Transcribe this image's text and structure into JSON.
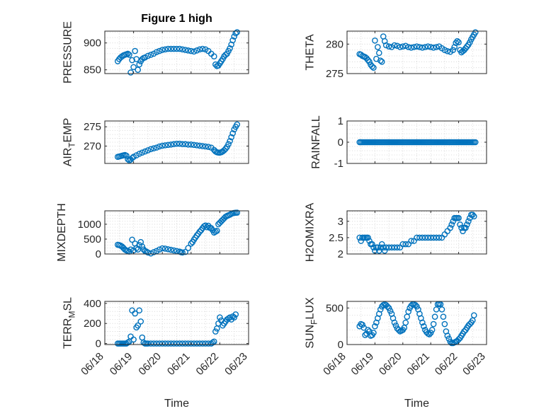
{
  "figure": {
    "title": "Figure 1 high",
    "marker_color": "#0072BD"
  },
  "chart_data": [
    {
      "id": "pressure",
      "type": "scatter",
      "title": "Figure 1 high",
      "ylabel": "PRESSURE",
      "xlabel": "",
      "ylim": [
        843,
        922
      ],
      "yticks": [
        850,
        900
      ],
      "ytick_labels": [
        "850",
        "900"
      ],
      "grid": true,
      "x": [
        18.45,
        18.5,
        18.55,
        18.6,
        18.65,
        18.7,
        18.75,
        18.8,
        18.85,
        18.9,
        18.95,
        19.0,
        19.05,
        19.1,
        19.15,
        19.2,
        19.25,
        19.3,
        19.35,
        19.4,
        19.5,
        19.6,
        19.7,
        19.8,
        19.9,
        20.0,
        20.1,
        20.2,
        20.3,
        20.4,
        20.5,
        20.6,
        20.7,
        20.8,
        20.9,
        21.0,
        21.1,
        21.2,
        21.3,
        21.4,
        21.5,
        21.6,
        21.7,
        21.8,
        21.85,
        21.9,
        21.95,
        22.0,
        22.05,
        22.1,
        22.15,
        22.2,
        22.25,
        22.3,
        22.35,
        22.4,
        22.45,
        22.5,
        22.55,
        22.6
      ],
      "y": [
        866,
        870,
        873,
        875,
        877,
        878,
        879,
        880,
        878,
        845,
        868,
        855,
        885,
        870,
        850,
        860,
        866,
        870,
        872,
        873,
        876,
        878,
        880,
        883,
        885,
        887,
        888,
        889,
        889,
        889,
        889,
        889,
        888,
        887,
        886,
        885,
        884,
        886,
        888,
        889,
        888,
        885,
        880,
        875,
        860,
        857,
        858,
        862,
        866,
        870,
        875,
        878,
        880,
        885,
        890,
        897,
        905,
        912,
        918,
        920
      ]
    },
    {
      "id": "theta",
      "type": "scatter",
      "title": "",
      "ylabel": "THETA",
      "xlabel": "",
      "ylim": [
        275,
        282.2
      ],
      "yticks": [
        275,
        280
      ],
      "ytick_labels": [
        "275",
        "280"
      ],
      "grid": true,
      "x": [
        18.45,
        18.5,
        18.55,
        18.6,
        18.65,
        18.7,
        18.75,
        18.8,
        18.85,
        18.9,
        18.95,
        19.0,
        19.05,
        19.1,
        19.15,
        19.2,
        19.25,
        19.3,
        19.35,
        19.4,
        19.5,
        19.6,
        19.7,
        19.8,
        19.9,
        20.0,
        20.1,
        20.2,
        20.3,
        20.4,
        20.5,
        20.6,
        20.7,
        20.8,
        20.9,
        21.0,
        21.1,
        21.2,
        21.3,
        21.4,
        21.5,
        21.6,
        21.7,
        21.8,
        21.85,
        21.9,
        21.95,
        22.0,
        22.05,
        22.1,
        22.15,
        22.2,
        22.25,
        22.3,
        22.35,
        22.4,
        22.45,
        22.5,
        22.55,
        22.6
      ],
      "y": [
        278.3,
        278.2,
        278.0,
        277.9,
        277.8,
        277.6,
        277.3,
        277.0,
        276.5,
        276.2,
        276.0,
        280.6,
        277.5,
        279.5,
        278.5,
        277.2,
        277.0,
        281.3,
        280.5,
        279.8,
        279.6,
        279.5,
        279.8,
        279.7,
        279.5,
        279.6,
        279.7,
        279.5,
        279.4,
        279.5,
        279.6,
        279.5,
        279.4,
        279.5,
        279.6,
        279.5,
        279.4,
        279.5,
        279.6,
        279.3,
        279.0,
        278.8,
        278.7,
        279.0,
        279.5,
        280.2,
        280.5,
        280.3,
        279.0,
        278.6,
        278.8,
        279.0,
        279.3,
        279.6,
        279.9,
        280.3,
        280.8,
        281.2,
        281.6,
        282.0
      ]
    },
    {
      "id": "air-temp",
      "type": "scatter",
      "title": "",
      "ylabel_main": "AIR",
      "ylabel_sub": "T",
      "ylabel_rest": "EMP",
      "xlabel": "",
      "ylim": [
        265.5,
        276.5
      ],
      "yticks": [
        270,
        275
      ],
      "ytick_labels": [
        "270",
        "275"
      ],
      "grid": true,
      "x": [
        18.45,
        18.5,
        18.55,
        18.6,
        18.65,
        18.7,
        18.75,
        18.8,
        18.85,
        18.9,
        18.95,
        19.0,
        19.1,
        19.2,
        19.3,
        19.4,
        19.5,
        19.6,
        19.7,
        19.8,
        19.9,
        20.0,
        20.1,
        20.2,
        20.3,
        20.4,
        20.5,
        20.6,
        20.7,
        20.8,
        20.9,
        21.0,
        21.1,
        21.2,
        21.3,
        21.4,
        21.5,
        21.6,
        21.7,
        21.8,
        21.85,
        21.9,
        21.95,
        22.0,
        22.05,
        22.1,
        22.15,
        22.2,
        22.25,
        22.3,
        22.35,
        22.4,
        22.45,
        22.5,
        22.55,
        22.6
      ],
      "y": [
        267.2,
        267.3,
        267.4,
        267.5,
        267.6,
        267.7,
        267.5,
        266.6,
        266.3,
        266.5,
        266.9,
        267.2,
        267.6,
        268.0,
        268.3,
        268.6,
        268.9,
        269.2,
        269.4,
        269.6,
        269.9,
        270.1,
        270.2,
        270.3,
        270.4,
        270.5,
        270.6,
        270.6,
        270.5,
        270.5,
        270.4,
        270.4,
        270.3,
        270.2,
        270.1,
        270.0,
        269.9,
        269.8,
        269.6,
        269.0,
        268.6,
        268.4,
        268.3,
        268.3,
        268.4,
        268.6,
        268.9,
        269.3,
        269.8,
        270.5,
        271.3,
        272.3,
        273.3,
        274.3,
        275.0,
        275.6
      ]
    },
    {
      "id": "rainfall",
      "type": "scatter",
      "title": "",
      "ylabel": "RAINFALL",
      "xlabel": "",
      "ylim": [
        -1,
        1
      ],
      "yticks": [
        -1,
        0,
        1
      ],
      "ytick_labels": [
        "-1",
        "0",
        "1"
      ],
      "grid": true,
      "x_start": 18.45,
      "x_end": 22.6,
      "x_step": 0.05,
      "constant_y": 0
    },
    {
      "id": "mixdepth",
      "type": "scatter",
      "title": "",
      "ylabel": "MIXDEPTH",
      "xlabel": "",
      "ylim": [
        0,
        1450
      ],
      "yticks": [
        0,
        500,
        1000
      ],
      "ytick_labels": [
        "0",
        "500",
        "1000"
      ],
      "grid": true,
      "x": [
        18.45,
        18.5,
        18.55,
        18.6,
        18.65,
        18.7,
        18.75,
        18.8,
        18.85,
        18.9,
        18.95,
        19.0,
        19.05,
        19.1,
        19.15,
        19.2,
        19.25,
        19.3,
        19.35,
        19.4,
        19.45,
        19.5,
        19.6,
        19.7,
        19.8,
        19.9,
        20.0,
        20.1,
        20.2,
        20.3,
        20.4,
        20.5,
        20.6,
        20.65,
        20.7,
        20.8,
        20.9,
        21.0,
        21.05,
        21.1,
        21.15,
        21.2,
        21.25,
        21.3,
        21.35,
        21.4,
        21.45,
        21.5,
        21.55,
        21.6,
        21.65,
        21.7,
        21.75,
        21.8,
        21.85,
        21.9,
        21.95,
        22.0,
        22.05,
        22.1,
        22.15,
        22.2,
        22.25,
        22.3,
        22.35,
        22.4,
        22.45,
        22.5,
        22.55,
        22.6
      ],
      "y": [
        310,
        300,
        280,
        250,
        200,
        150,
        120,
        100,
        80,
        150,
        480,
        120,
        350,
        200,
        150,
        300,
        400,
        250,
        150,
        100,
        80,
        50,
        20,
        60,
        100,
        150,
        190,
        180,
        160,
        140,
        120,
        100,
        80,
        60,
        50,
        70,
        200,
        350,
        400,
        480,
        550,
        620,
        680,
        750,
        800,
        870,
        930,
        960,
        900,
        950,
        880,
        870,
        800,
        720,
        750,
        780,
        1000,
        1050,
        1100,
        1150,
        1200,
        1250,
        1280,
        1300,
        1320,
        1350,
        1370,
        1380,
        1385,
        1390
      ]
    },
    {
      "id": "h2omixra",
      "type": "scatter",
      "title": "",
      "ylabel": "H2OMIXRA",
      "xlabel": "",
      "ylim": [
        2,
        3.32
      ],
      "yticks": [
        2,
        2.5,
        3
      ],
      "ytick_labels": [
        "2",
        "2.5",
        "3"
      ],
      "grid": true,
      "x": [
        18.45,
        18.5,
        18.55,
        18.6,
        18.65,
        18.7,
        18.75,
        18.8,
        18.85,
        18.9,
        18.95,
        19.0,
        19.05,
        19.1,
        19.15,
        19.2,
        19.25,
        19.3,
        19.35,
        19.4,
        19.5,
        19.6,
        19.7,
        19.8,
        19.9,
        20.0,
        20.1,
        20.2,
        20.3,
        20.4,
        20.5,
        20.6,
        20.7,
        20.8,
        20.9,
        21.0,
        21.1,
        21.2,
        21.3,
        21.4,
        21.5,
        21.6,
        21.7,
        21.75,
        21.8,
        21.85,
        21.9,
        21.95,
        22.0,
        22.05,
        22.1,
        22.15,
        22.2,
        22.25,
        22.3,
        22.35,
        22.4,
        22.45,
        22.5,
        22.55
      ],
      "y": [
        2.5,
        2.4,
        2.5,
        2.5,
        2.5,
        2.5,
        2.5,
        2.4,
        2.3,
        2.3,
        2.2,
        2.1,
        2.2,
        2.2,
        2.1,
        2.2,
        2.3,
        2.2,
        2.1,
        2.2,
        2.2,
        2.2,
        2.2,
        2.2,
        2.2,
        2.3,
        2.3,
        2.3,
        2.4,
        2.4,
        2.5,
        2.5,
        2.5,
        2.5,
        2.5,
        2.5,
        2.5,
        2.5,
        2.5,
        2.5,
        2.6,
        2.7,
        2.8,
        2.9,
        3.0,
        3.1,
        3.1,
        3.1,
        3.1,
        2.9,
        2.8,
        2.7,
        2.8,
        2.8,
        2.9,
        3.0,
        3.1,
        3.2,
        3.2,
        3.15
      ]
    },
    {
      "id": "terr-msl",
      "type": "scatter",
      "title": "",
      "ylabel_main": "TERR",
      "ylabel_sub": "M",
      "ylabel_rest": "SL",
      "xlabel": "Time",
      "ylim": [
        -10,
        420
      ],
      "yticks": [
        0,
        200,
        400
      ],
      "ytick_labels": [
        "0",
        "200",
        "400"
      ],
      "xticks": [
        18,
        19,
        20,
        21,
        22,
        23
      ],
      "xtick_labels": [
        "06/18",
        "06/19",
        "06/20",
        "06/21",
        "06/22",
        "06/23"
      ],
      "grid": true,
      "x": [
        18.45,
        18.5,
        18.55,
        18.6,
        18.65,
        18.7,
        18.75,
        18.8,
        18.85,
        18.9,
        18.95,
        19.0,
        19.05,
        19.1,
        19.15,
        19.2,
        19.25,
        19.3,
        19.35,
        19.4,
        19.45,
        19.5,
        19.6,
        19.7,
        19.8,
        19.9,
        20.0,
        20.1,
        20.2,
        20.3,
        20.4,
        20.5,
        20.6,
        20.7,
        20.8,
        20.9,
        21.0,
        21.1,
        21.2,
        21.3,
        21.4,
        21.5,
        21.6,
        21.7,
        21.75,
        21.8,
        21.85,
        21.9,
        21.95,
        22.0,
        22.05,
        22.1,
        22.15,
        22.2,
        22.25,
        22.3,
        22.35,
        22.4,
        22.45,
        22.5,
        22.55
      ],
      "y": [
        0,
        0,
        0,
        0,
        0,
        0,
        0,
        10,
        20,
        70,
        330,
        40,
        300,
        160,
        180,
        330,
        220,
        60,
        10,
        0,
        0,
        0,
        0,
        0,
        0,
        0,
        0,
        0,
        0,
        0,
        0,
        0,
        0,
        0,
        0,
        0,
        0,
        0,
        0,
        0,
        0,
        0,
        0,
        0,
        10,
        20,
        120,
        150,
        200,
        260,
        230,
        180,
        200,
        220,
        240,
        250,
        260,
        240,
        270,
        260,
        290
      ]
    },
    {
      "id": "sun-flux",
      "type": "scatter",
      "title": "",
      "ylabel_main": "SUN",
      "ylabel_sub": "F",
      "ylabel_rest": "LUX",
      "xlabel": "Time",
      "ylim": [
        0,
        590
      ],
      "yticks": [
        0,
        500
      ],
      "ytick_labels": [
        "0",
        "500"
      ],
      "xticks": [
        18,
        19,
        20,
        21,
        22,
        23
      ],
      "xtick_labels": [
        "06/18",
        "06/19",
        "06/20",
        "06/21",
        "06/22",
        "06/23"
      ],
      "grid": true,
      "x": [
        18.45,
        18.5,
        18.55,
        18.6,
        18.65,
        18.7,
        18.75,
        18.8,
        18.85,
        18.9,
        18.95,
        19.0,
        19.05,
        19.1,
        19.15,
        19.2,
        19.25,
        19.3,
        19.35,
        19.4,
        19.45,
        19.5,
        19.55,
        19.6,
        19.65,
        19.7,
        19.75,
        19.8,
        19.85,
        19.9,
        19.95,
        20.0,
        20.05,
        20.1,
        20.15,
        20.2,
        20.25,
        20.3,
        20.35,
        20.4,
        20.45,
        20.5,
        20.55,
        20.6,
        20.65,
        20.7,
        20.75,
        20.8,
        20.85,
        20.9,
        20.95,
        21.0,
        21.05,
        21.1,
        21.15,
        21.2,
        21.25,
        21.3,
        21.35,
        21.4,
        21.45,
        21.5,
        21.55,
        21.6,
        21.65,
        21.7,
        21.75,
        21.8,
        21.85,
        21.9,
        21.95,
        22.0,
        22.05,
        22.1,
        22.15,
        22.2,
        22.25,
        22.3,
        22.35,
        22.4,
        22.45,
        22.5,
        22.55
      ],
      "y": [
        250,
        280,
        270,
        230,
        130,
        150,
        200,
        180,
        120,
        130,
        160,
        250,
        300,
        360,
        420,
        480,
        520,
        540,
        550,
        540,
        520,
        500,
        460,
        420,
        360,
        300,
        260,
        220,
        200,
        180,
        190,
        200,
        230,
        300,
        380,
        450,
        500,
        530,
        550,
        550,
        540,
        520,
        480,
        420,
        360,
        300,
        250,
        200,
        170,
        150,
        140,
        160,
        200,
        280,
        380,
        480,
        550,
        555,
        550,
        480,
        380,
        280,
        180,
        120,
        80,
        40,
        20,
        20,
        30,
        40,
        50,
        70,
        90,
        120,
        150,
        180,
        200,
        230,
        260,
        280,
        300,
        330,
        400
      ]
    }
  ]
}
